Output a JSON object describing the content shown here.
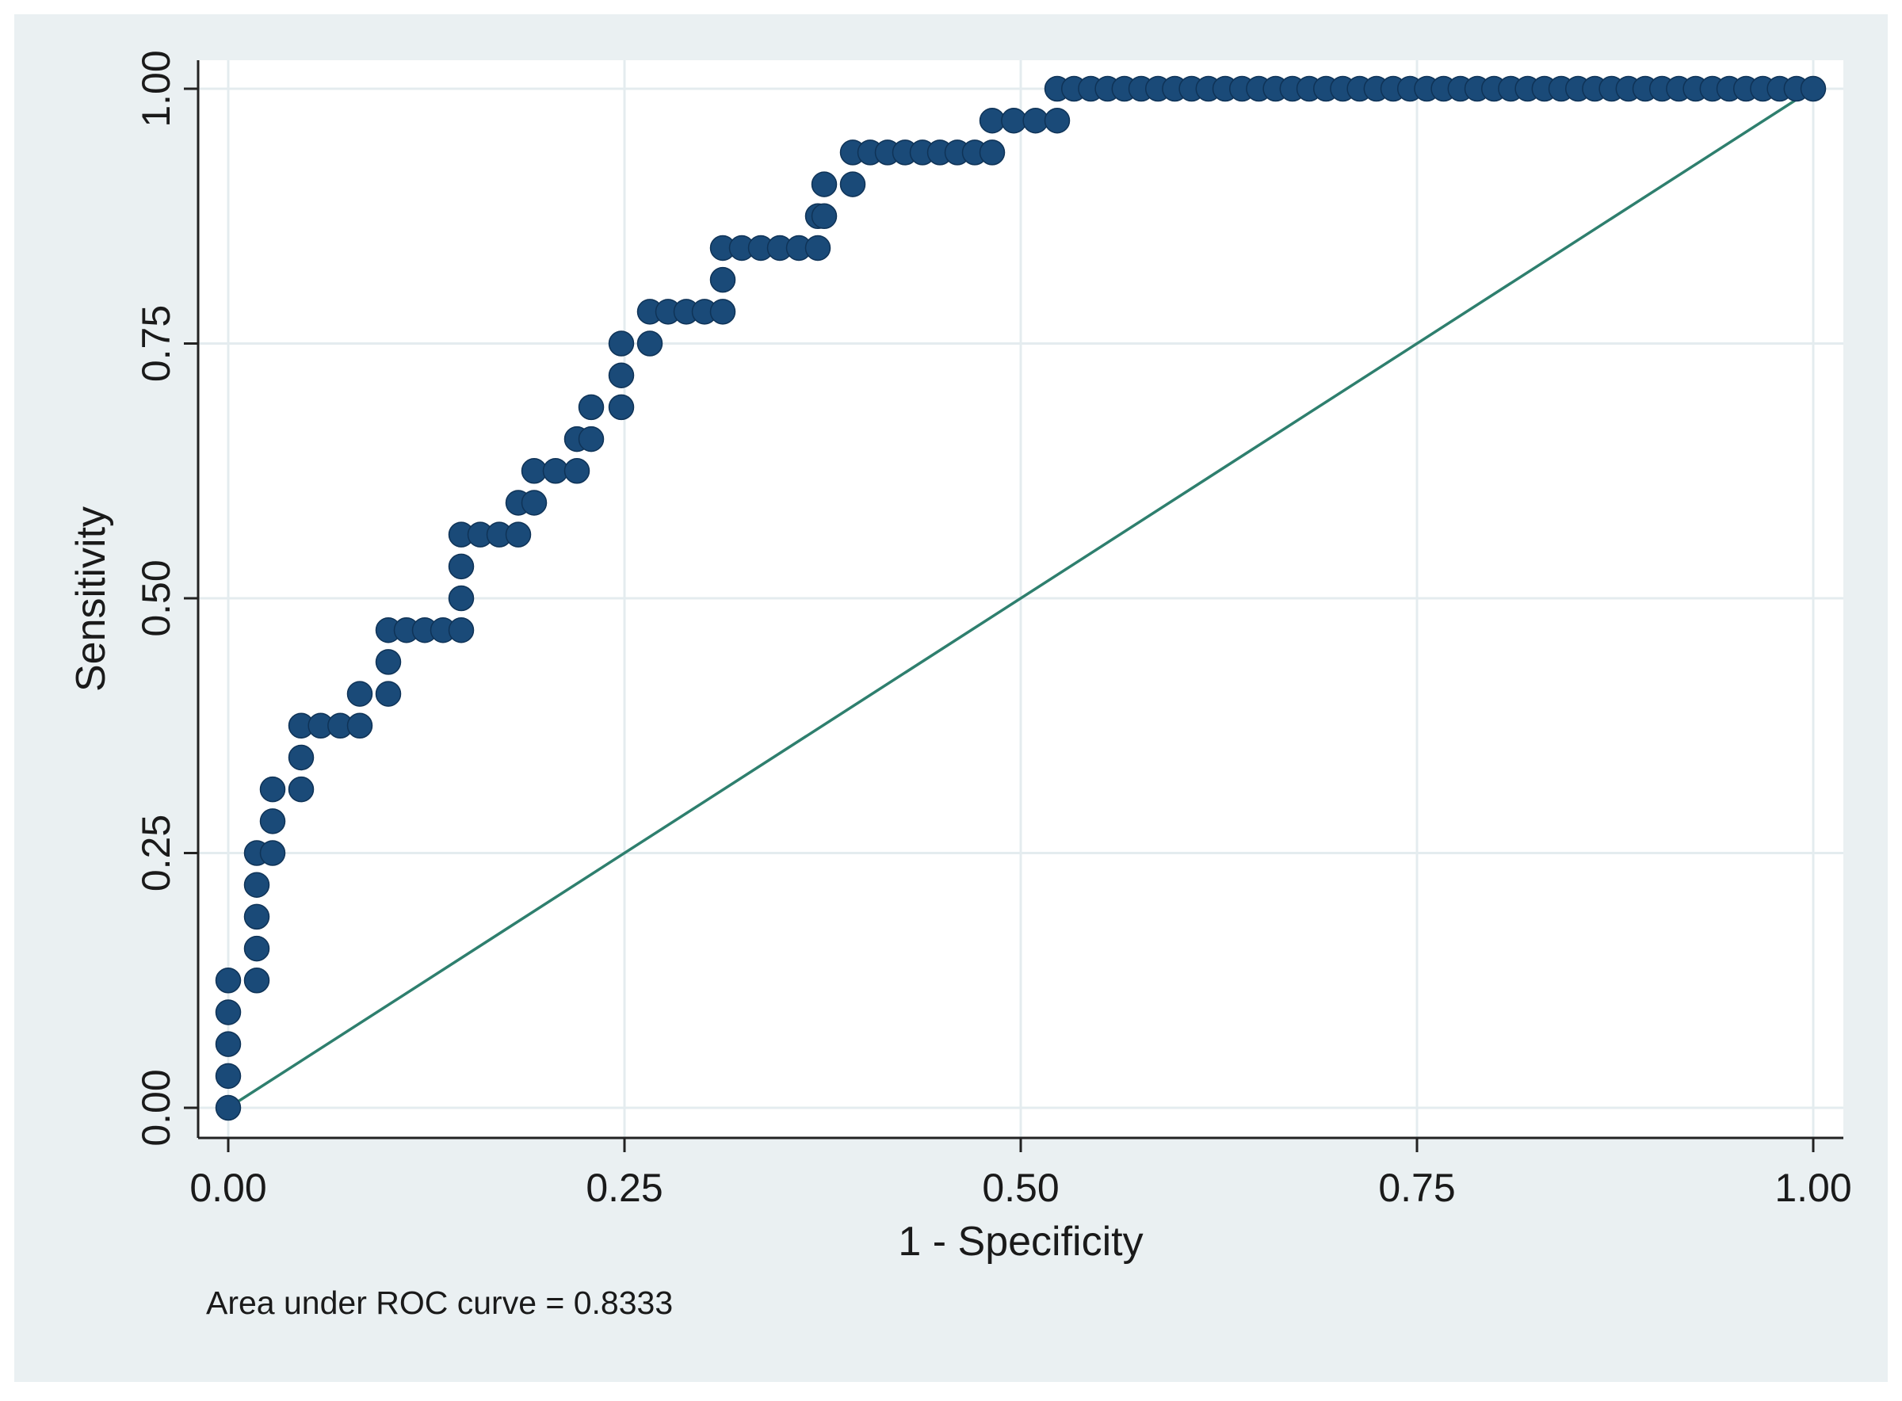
{
  "chart_data": {
    "type": "scatter",
    "title": "",
    "xlabel": "1 - Specificity",
    "ylabel": "Sensitivity",
    "xlim": [
      0,
      1
    ],
    "ylim": [
      0,
      1
    ],
    "xticks": [
      "0.00",
      "0.25",
      "0.50",
      "0.75",
      "1.00"
    ],
    "yticks": [
      "0.00",
      "0.25",
      "0.50",
      "0.75",
      "1.00"
    ],
    "grid": true,
    "annotation": "Area under ROC curve = 0.8333",
    "reference_line": {
      "from": [
        0,
        0
      ],
      "to": [
        1,
        1
      ],
      "color": "#2e7f6e"
    },
    "marker_color": "#1a4a78",
    "series": [
      {
        "points": [
          [
            0.0,
            0.0
          ],
          [
            0.0,
            0.03125
          ],
          [
            0.0,
            0.0625
          ],
          [
            0.0,
            0.09375
          ],
          [
            0.0,
            0.125
          ],
          [
            0.018,
            0.125
          ],
          [
            0.018,
            0.15625
          ],
          [
            0.018,
            0.1875
          ],
          [
            0.018,
            0.21875
          ],
          [
            0.018,
            0.25
          ],
          [
            0.028,
            0.25
          ],
          [
            0.028,
            0.28125
          ],
          [
            0.028,
            0.3125
          ],
          [
            0.046,
            0.3125
          ],
          [
            0.046,
            0.34375
          ],
          [
            0.046,
            0.375
          ],
          [
            0.083,
            0.375
          ],
          [
            0.083,
            0.40625
          ],
          [
            0.101,
            0.40625
          ],
          [
            0.101,
            0.4375
          ],
          [
            0.101,
            0.46875
          ],
          [
            0.147,
            0.46875
          ],
          [
            0.147,
            0.5
          ],
          [
            0.147,
            0.53125
          ],
          [
            0.147,
            0.5625
          ],
          [
            0.183,
            0.5625
          ],
          [
            0.183,
            0.59375
          ],
          [
            0.193,
            0.59375
          ],
          [
            0.193,
            0.625
          ],
          [
            0.22,
            0.625
          ],
          [
            0.22,
            0.65625
          ],
          [
            0.229,
            0.65625
          ],
          [
            0.229,
            0.6875
          ],
          [
            0.248,
            0.6875
          ],
          [
            0.248,
            0.71875
          ],
          [
            0.248,
            0.75
          ],
          [
            0.266,
            0.75
          ],
          [
            0.266,
            0.78125
          ],
          [
            0.312,
            0.78125
          ],
          [
            0.312,
            0.8125
          ],
          [
            0.312,
            0.84375
          ],
          [
            0.372,
            0.84375
          ],
          [
            0.372,
            0.875
          ],
          [
            0.376,
            0.875
          ],
          [
            0.376,
            0.90625
          ],
          [
            0.394,
            0.90625
          ],
          [
            0.394,
            0.9375
          ],
          [
            0.482,
            0.9375
          ],
          [
            0.482,
            0.96875
          ],
          [
            0.523,
            0.96875
          ],
          [
            0.523,
            1.0
          ],
          [
            1.0,
            1.0
          ]
        ]
      }
    ]
  }
}
